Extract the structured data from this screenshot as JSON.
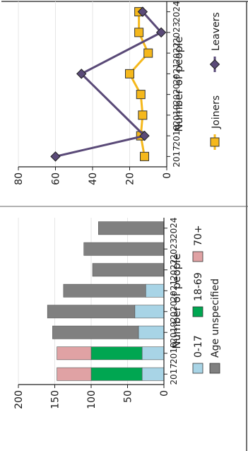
{
  "chart_data": [
    {
      "type": "bar",
      "stacked": true,
      "orientation": "vertical",
      "categories": [
        "2017",
        "2018",
        "2019",
        "2020",
        "2021",
        "2022",
        "2023",
        "2024"
      ],
      "series": [
        {
          "name": "0-17",
          "color": "#a8d4e6",
          "values": [
            30,
            30,
            35,
            40,
            25,
            0,
            0,
            0
          ]
        },
        {
          "name": "18-69",
          "color": "#00a651",
          "values": [
            70,
            70,
            0,
            0,
            0,
            0,
            0,
            0
          ]
        },
        {
          "name": "70+",
          "color": "#e0a2a4",
          "values": [
            47,
            47,
            0,
            0,
            0,
            0,
            0,
            0
          ]
        },
        {
          "name": "Age unspecified",
          "color": "#808080",
          "values": [
            0,
            0,
            118,
            120,
            113,
            98,
            110,
            90
          ]
        }
      ],
      "ylabel": "Number of people",
      "yticks": [
        0,
        50,
        100,
        150,
        200
      ],
      "ylim": [
        0,
        200
      ],
      "grid": true,
      "legend_position": "bottom"
    },
    {
      "type": "line",
      "categories": [
        "2017",
        "2018",
        "2019",
        "2020",
        "2021",
        "2022",
        "2023",
        "2024"
      ],
      "series": [
        {
          "name": "Joiners",
          "color": "#f5b81c",
          "marker": "square",
          "values": [
            12,
            14,
            13,
            14,
            20,
            10,
            15,
            15
          ]
        },
        {
          "name": "Leavers",
          "color": "#5a4a78",
          "marker": "diamond",
          "values": [
            60,
            12,
            null,
            null,
            46,
            null,
            3,
            13
          ]
        }
      ],
      "ylabel": "Number of people",
      "yticks": [
        0,
        20,
        40,
        60,
        80
      ],
      "ylim": [
        0,
        80
      ],
      "grid": true,
      "legend_position": "bottom"
    }
  ]
}
